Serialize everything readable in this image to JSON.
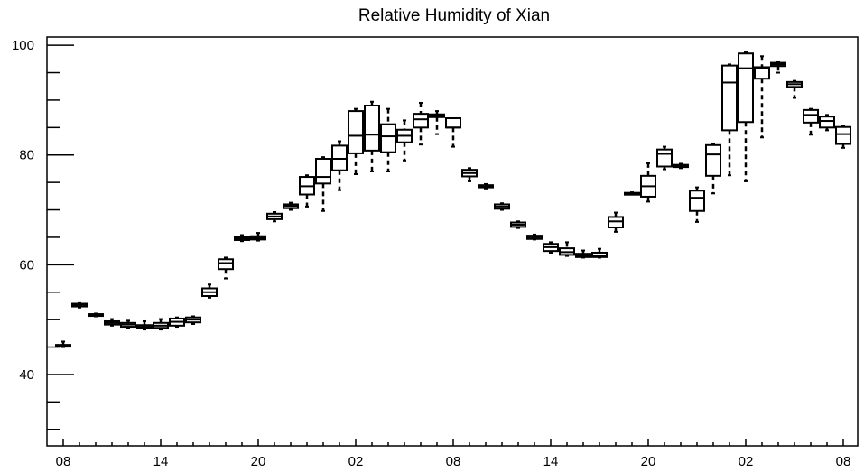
{
  "chart_data": {
    "type": "box",
    "title": "Relative Humidity of Xian",
    "xlabel": "",
    "ylabel": "",
    "ylim": [
      27,
      101.5
    ],
    "yticks": [
      40,
      60,
      80,
      100
    ],
    "xticks": [
      {
        "index": 0,
        "label": "08"
      },
      {
        "index": 6,
        "label": "14"
      },
      {
        "index": 12,
        "label": "20"
      },
      {
        "index": 18,
        "label": "02"
      },
      {
        "index": 24,
        "label": "08"
      },
      {
        "index": 30,
        "label": "14"
      },
      {
        "index": 36,
        "label": "20"
      },
      {
        "index": 42,
        "label": "02"
      },
      {
        "index": 48,
        "label": "08"
      }
    ],
    "grid": false,
    "boxes": [
      {
        "hour": 0,
        "min": 45.0,
        "q1": 45.1,
        "median": 45.3,
        "q3": 45.4,
        "max": 46.0
      },
      {
        "hour": 1,
        "min": 52.2,
        "q1": 52.4,
        "median": 52.7,
        "q3": 52.9,
        "max": 53.0
      },
      {
        "hour": 2,
        "min": 50.6,
        "q1": 50.8,
        "median": 50.9,
        "q3": 51.0,
        "max": 51.1
      },
      {
        "hour": 3,
        "min": 48.9,
        "q1": 49.1,
        "median": 49.4,
        "q3": 49.7,
        "max": 50.1
      },
      {
        "hour": 4,
        "min": 48.4,
        "q1": 48.7,
        "median": 49.1,
        "q3": 49.4,
        "max": 49.8
      },
      {
        "hour": 5,
        "min": 48.2,
        "q1": 48.4,
        "median": 48.7,
        "q3": 49.0,
        "max": 49.7
      },
      {
        "hour": 6,
        "min": 48.2,
        "q1": 48.5,
        "median": 48.9,
        "q3": 49.4,
        "max": 50.1
      },
      {
        "hour": 7,
        "min": 48.7,
        "q1": 48.9,
        "median": 49.6,
        "q3": 50.2,
        "max": 50.4
      },
      {
        "hour": 8,
        "min": 49.2,
        "q1": 49.5,
        "median": 50.0,
        "q3": 50.4,
        "max": 50.6
      },
      {
        "hour": 9,
        "min": 54.0,
        "q1": 54.3,
        "median": 55.0,
        "q3": 55.7,
        "max": 56.4
      },
      {
        "hour": 10,
        "min": 57.5,
        "q1": 59.2,
        "median": 60.3,
        "q3": 61.0,
        "max": 61.3
      },
      {
        "hour": 11,
        "min": 64.3,
        "q1": 64.5,
        "median": 64.8,
        "q3": 65.0,
        "max": 65.4
      },
      {
        "hour": 12,
        "min": 64.4,
        "q1": 64.6,
        "median": 64.9,
        "q3": 65.2,
        "max": 65.8
      },
      {
        "hour": 13,
        "min": 67.9,
        "q1": 68.3,
        "median": 68.8,
        "q3": 69.3,
        "max": 69.6
      },
      {
        "hour": 14,
        "min": 70.0,
        "q1": 70.3,
        "median": 70.7,
        "q3": 71.0,
        "max": 71.3
      },
      {
        "hour": 15,
        "min": 70.6,
        "q1": 72.8,
        "median": 74.3,
        "q3": 76.0,
        "max": 76.3
      },
      {
        "hour": 16,
        "min": 69.8,
        "q1": 74.8,
        "median": 76.0,
        "q3": 79.3,
        "max": 79.6
      },
      {
        "hour": 17,
        "min": 73.6,
        "q1": 77.2,
        "median": 79.3,
        "q3": 81.7,
        "max": 82.5
      },
      {
        "hour": 18,
        "min": 76.5,
        "q1": 80.3,
        "median": 83.5,
        "q3": 88.0,
        "max": 88.4
      },
      {
        "hour": 19,
        "min": 77.0,
        "q1": 80.8,
        "median": 83.7,
        "q3": 89.0,
        "max": 89.7
      },
      {
        "hour": 20,
        "min": 77.0,
        "q1": 80.5,
        "median": 83.4,
        "q3": 85.6,
        "max": 88.4
      },
      {
        "hour": 21,
        "min": 79.0,
        "q1": 82.3,
        "median": 83.5,
        "q3": 84.6,
        "max": 86.3
      },
      {
        "hour": 22,
        "min": 81.9,
        "q1": 85.0,
        "median": 86.5,
        "q3": 87.5,
        "max": 89.5
      },
      {
        "hour": 23,
        "min": 83.8,
        "q1": 86.9,
        "median": 87.2,
        "q3": 87.4,
        "max": 88.0
      },
      {
        "hour": 24,
        "min": 81.5,
        "q1": 85.0,
        "median": 85.0,
        "q3": 86.7,
        "max": 86.7
      },
      {
        "hour": 25,
        "min": 75.2,
        "q1": 76.1,
        "median": 76.7,
        "q3": 77.3,
        "max": 77.6
      },
      {
        "hour": 26,
        "min": 73.9,
        "q1": 74.1,
        "median": 74.3,
        "q3": 74.5,
        "max": 74.7
      },
      {
        "hour": 27,
        "min": 70.0,
        "q1": 70.2,
        "median": 70.6,
        "q3": 71.0,
        "max": 71.2
      },
      {
        "hour": 28,
        "min": 66.7,
        "q1": 66.9,
        "median": 67.3,
        "q3": 67.7,
        "max": 67.9
      },
      {
        "hour": 29,
        "min": 64.6,
        "q1": 64.7,
        "median": 65.0,
        "q3": 65.3,
        "max": 65.5
      },
      {
        "hour": 30,
        "min": 62.2,
        "q1": 62.5,
        "median": 63.2,
        "q3": 63.8,
        "max": 64.1
      },
      {
        "hour": 31,
        "min": 61.6,
        "q1": 61.8,
        "median": 62.3,
        "q3": 63.0,
        "max": 64.1
      },
      {
        "hour": 32,
        "min": 61.3,
        "q1": 61.4,
        "median": 61.7,
        "q3": 62.0,
        "max": 62.6
      },
      {
        "hour": 33,
        "min": 61.3,
        "q1": 61.4,
        "median": 61.7,
        "q3": 62.2,
        "max": 62.9
      },
      {
        "hour": 34,
        "min": 66.0,
        "q1": 66.8,
        "median": 67.9,
        "q3": 68.7,
        "max": 69.5
      },
      {
        "hour": 35,
        "min": 72.8,
        "q1": 72.9,
        "median": 73.0,
        "q3": 73.1,
        "max": 73.2
      },
      {
        "hour": 36,
        "min": 71.5,
        "q1": 72.4,
        "median": 74.3,
        "q3": 76.2,
        "max": 78.5
      },
      {
        "hour": 37,
        "min": 77.4,
        "q1": 77.9,
        "median": 80.2,
        "q3": 81.0,
        "max": 81.5
      },
      {
        "hour": 38,
        "min": 77.6,
        "q1": 77.8,
        "median": 78.0,
        "q3": 78.2,
        "max": 78.4
      },
      {
        "hour": 39,
        "min": 67.8,
        "q1": 69.8,
        "median": 72.2,
        "q3": 73.5,
        "max": 74.1
      },
      {
        "hour": 40,
        "min": 73.0,
        "q1": 76.2,
        "median": 80.1,
        "q3": 81.8,
        "max": 82.1
      },
      {
        "hour": 41,
        "min": 76.3,
        "q1": 84.5,
        "median": 93.2,
        "q3": 96.3,
        "max": 96.5
      },
      {
        "hour": 42,
        "min": 75.2,
        "q1": 86.0,
        "median": 95.8,
        "q3": 98.5,
        "max": 98.7
      },
      {
        "hour": 43,
        "min": 83.2,
        "q1": 93.9,
        "median": 95.8,
        "q3": 96.0,
        "max": 98.0
      },
      {
        "hour": 44,
        "min": 95.0,
        "q1": 96.2,
        "median": 96.5,
        "q3": 96.8,
        "max": 96.9
      },
      {
        "hour": 45,
        "min": 90.4,
        "q1": 92.4,
        "median": 92.9,
        "q3": 93.3,
        "max": 93.5
      },
      {
        "hour": 46,
        "min": 83.7,
        "q1": 85.9,
        "median": 87.3,
        "q3": 88.2,
        "max": 88.4
      },
      {
        "hour": 47,
        "min": 84.5,
        "q1": 85.0,
        "median": 86.2,
        "q3": 87.0,
        "max": 87.3
      },
      {
        "hour": 48,
        "min": 81.3,
        "q1": 82.0,
        "median": 83.8,
        "q3": 85.1,
        "max": 85.3
      }
    ]
  }
}
